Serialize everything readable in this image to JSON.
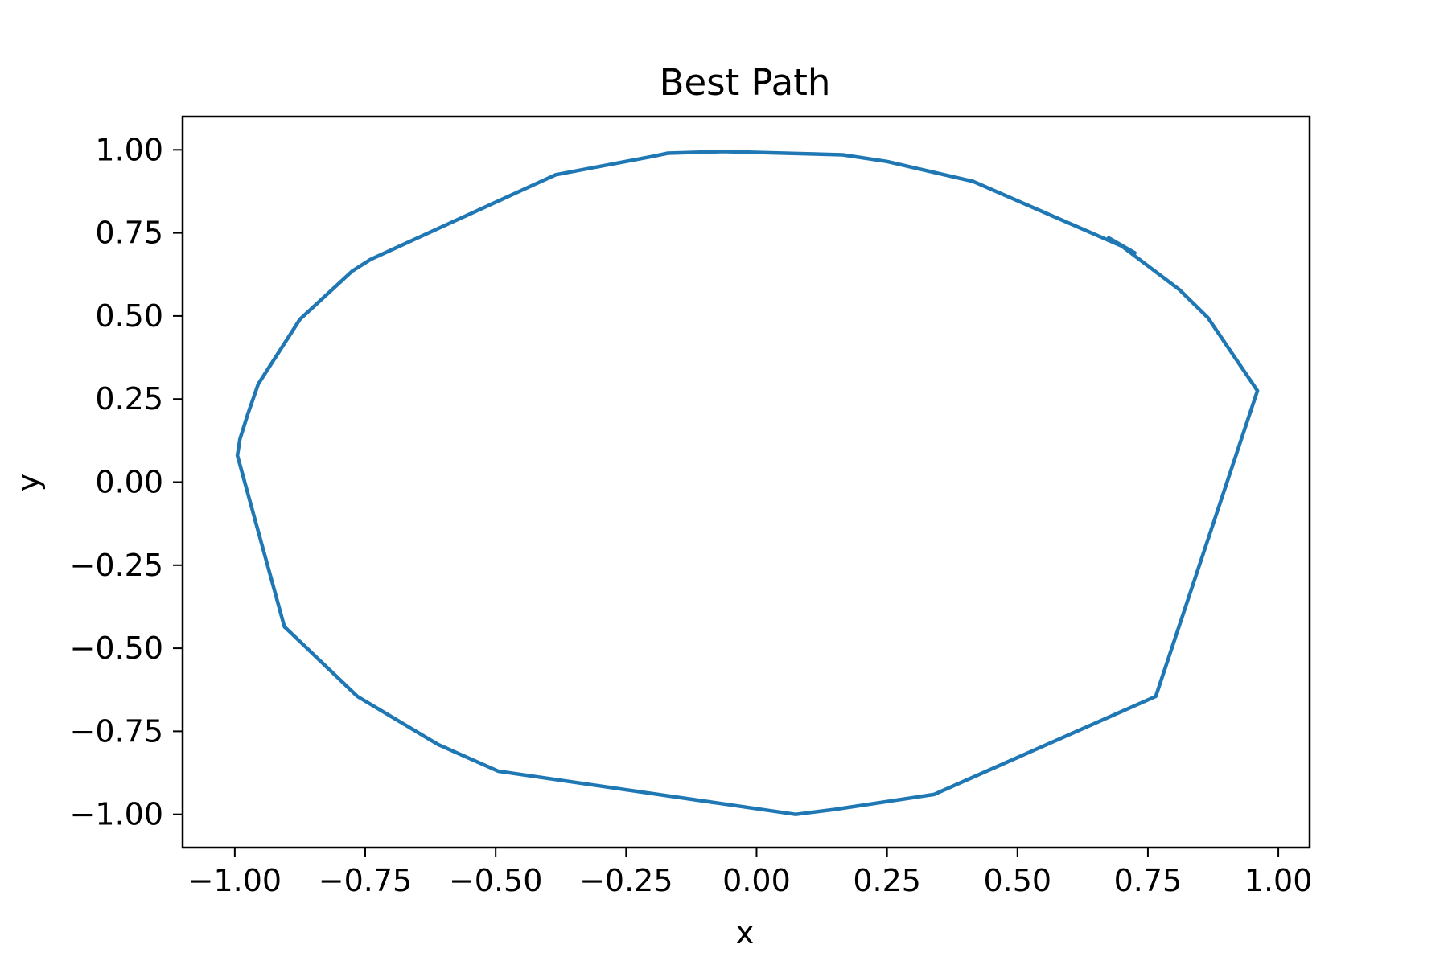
{
  "chart_data": {
    "type": "line",
    "title": "Best Path",
    "xlabel": "x",
    "ylabel": "y",
    "xlim": [
      -1.1,
      1.06
    ],
    "ylim": [
      -1.1,
      1.1
    ],
    "xticks": [
      -1.0,
      -0.75,
      -0.5,
      -0.25,
      0.0,
      0.25,
      0.5,
      0.75,
      1.0
    ],
    "xtick_labels": [
      "−1.00",
      "−0.75",
      "−0.50",
      "−0.25",
      "0.00",
      "0.25",
      "0.50",
      "0.75",
      "1.00"
    ],
    "yticks": [
      1.0,
      0.75,
      0.5,
      0.25,
      0.0,
      -0.25,
      -0.5,
      -0.75,
      -1.0
    ],
    "ytick_labels": [
      "1.00",
      "0.75",
      "0.50",
      "0.25",
      "0.00",
      "−0.25",
      "−0.50",
      "−0.75",
      "−1.00"
    ],
    "grid": false,
    "line_color": "#1f77b4",
    "series": [
      {
        "x": [
          0.675,
          0.725,
          0.7,
          0.81,
          0.865,
          0.96,
          0.765,
          0.34,
          0.15,
          0.075,
          -0.495,
          -0.61,
          -0.765,
          -0.905,
          -0.995,
          -0.99,
          -0.975,
          -0.955,
          -0.875,
          -0.775,
          -0.74,
          -0.385,
          -0.2,
          -0.17,
          -0.065,
          0.165,
          0.25,
          0.415,
          0.7
        ],
        "y": [
          0.735,
          0.69,
          0.71,
          0.58,
          0.495,
          0.275,
          -0.645,
          -0.94,
          -0.985,
          -1.0,
          -0.87,
          -0.79,
          -0.645,
          -0.435,
          0.08,
          0.13,
          0.205,
          0.295,
          0.49,
          0.635,
          0.67,
          0.925,
          0.98,
          0.99,
          0.995,
          0.985,
          0.965,
          0.905,
          0.71
        ]
      }
    ]
  }
}
